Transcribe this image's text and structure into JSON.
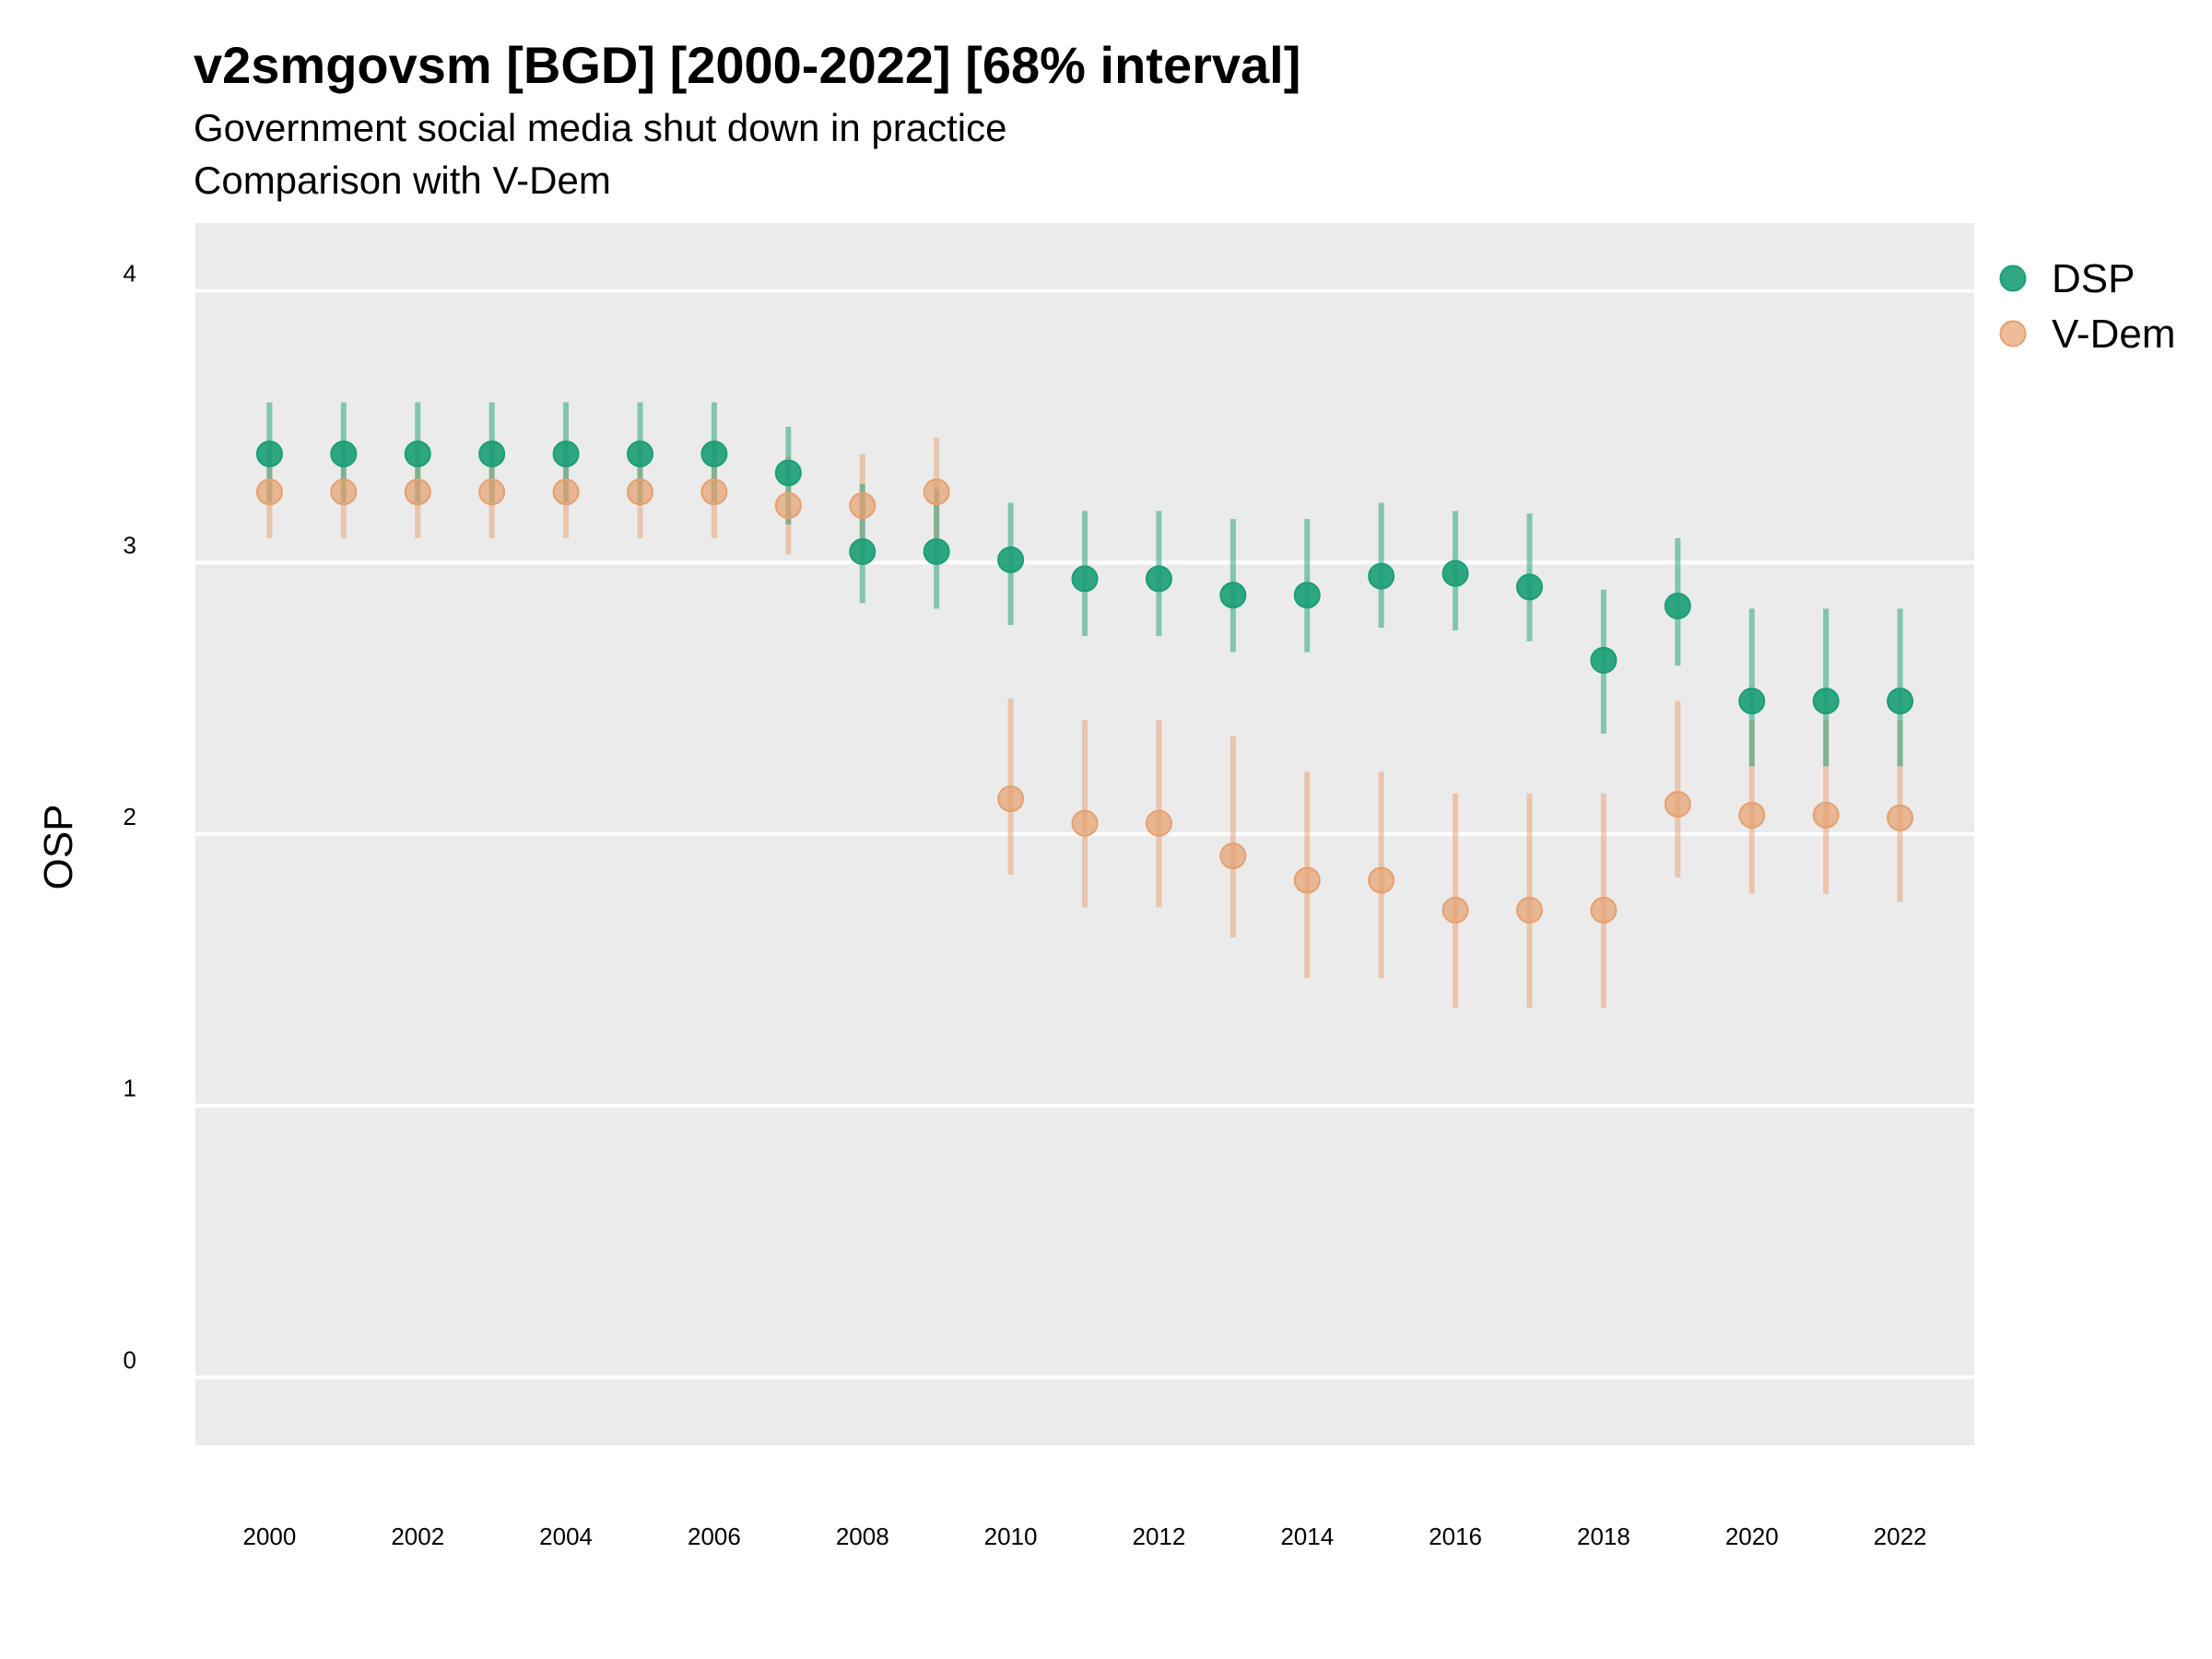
{
  "title": "v2smgovsm [BGD] [2000-2022] [68% interval]",
  "subtitle_line1": "Government social media shut down in practice",
  "subtitle_line2": "Comparison with V-Dem",
  "colors": {
    "DSP": "#1b9e77",
    "V-Dem": "#e6a06e",
    "panel": "#ebebeb",
    "grid": "#ffffff"
  },
  "chart_data": {
    "type": "scatter",
    "title": "v2smgovsm [BGD] [2000-2022] [68% interval]",
    "subtitle": "Government social media shut down in practice / Comparison with V-Dem",
    "xlabel": "",
    "ylabel": "OSP",
    "ylim": [
      -0.25,
      4.25
    ],
    "xlim": [
      1999,
      2023
    ],
    "y_ticks": [
      0,
      1,
      2,
      3,
      4
    ],
    "x_ticks": [
      2000,
      2002,
      2004,
      2006,
      2008,
      2010,
      2012,
      2014,
      2016,
      2018,
      2020,
      2022
    ],
    "grid": true,
    "legend_position": "right-top",
    "x": [
      2000,
      2001,
      2002,
      2003,
      2004,
      2005,
      2006,
      2007,
      2008,
      2009,
      2010,
      2011,
      2012,
      2013,
      2014,
      2015,
      2016,
      2017,
      2018,
      2019,
      2020,
      2021,
      2022
    ],
    "series": [
      {
        "name": "DSP",
        "values": [
          3.4,
          3.4,
          3.4,
          3.4,
          3.4,
          3.4,
          3.4,
          3.33,
          3.04,
          3.04,
          3.01,
          2.94,
          2.94,
          2.88,
          2.88,
          2.95,
          2.96,
          2.91,
          2.64,
          2.84,
          2.49,
          2.49,
          2.49
        ],
        "lower": [
          3.22,
          3.22,
          3.22,
          3.22,
          3.22,
          3.22,
          3.22,
          3.14,
          2.85,
          2.83,
          2.77,
          2.73,
          2.73,
          2.67,
          2.67,
          2.76,
          2.75,
          2.71,
          2.37,
          2.62,
          2.25,
          2.25,
          2.25
        ],
        "upper": [
          3.59,
          3.59,
          3.59,
          3.59,
          3.59,
          3.59,
          3.59,
          3.5,
          3.29,
          3.27,
          3.22,
          3.19,
          3.19,
          3.16,
          3.16,
          3.22,
          3.19,
          3.18,
          2.9,
          3.09,
          2.83,
          2.83,
          2.83
        ]
      },
      {
        "name": "V-Dem",
        "values": [
          3.26,
          3.26,
          3.26,
          3.26,
          3.26,
          3.26,
          3.26,
          3.21,
          3.21,
          3.26,
          2.13,
          2.04,
          2.04,
          1.92,
          1.83,
          1.83,
          1.72,
          1.72,
          1.72,
          2.11,
          2.07,
          2.07,
          2.06
        ],
        "lower": [
          3.09,
          3.09,
          3.09,
          3.09,
          3.09,
          3.09,
          3.09,
          3.03,
          3.03,
          3.09,
          1.85,
          1.73,
          1.73,
          1.62,
          1.47,
          1.47,
          1.36,
          1.36,
          1.36,
          1.84,
          1.78,
          1.78,
          1.75
        ],
        "upper": [
          3.44,
          3.44,
          3.44,
          3.44,
          3.44,
          3.44,
          3.44,
          3.39,
          3.4,
          3.46,
          2.5,
          2.42,
          2.42,
          2.36,
          2.23,
          2.23,
          2.15,
          2.15,
          2.15,
          2.49,
          2.42,
          2.42,
          2.42
        ]
      }
    ]
  }
}
